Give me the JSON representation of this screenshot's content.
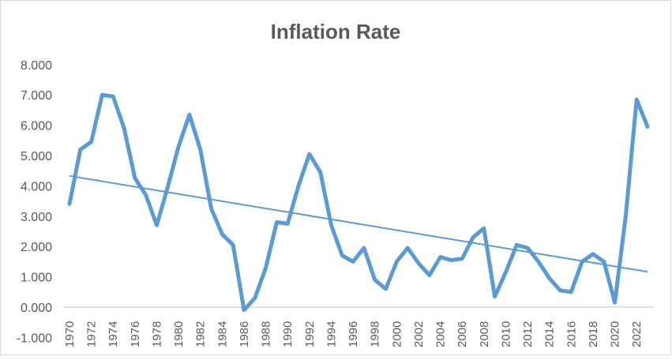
{
  "chart_data": {
    "type": "line",
    "title": "Inflation Rate",
    "xlabel": "",
    "ylabel": "",
    "ylim": [
      -1,
      8
    ],
    "y_ticks": [
      "-1.000",
      "0.000",
      "1.000",
      "2.000",
      "3.000",
      "4.000",
      "5.000",
      "6.000",
      "7.000",
      "8.000"
    ],
    "grid": false,
    "legend": "none",
    "x": [
      1970,
      1971,
      1972,
      1973,
      1974,
      1975,
      1976,
      1977,
      1978,
      1979,
      1980,
      1981,
      1982,
      1983,
      1984,
      1985,
      1986,
      1987,
      1988,
      1989,
      1990,
      1991,
      1992,
      1993,
      1994,
      1995,
      1996,
      1997,
      1998,
      1999,
      2000,
      2001,
      2002,
      2003,
      2004,
      2005,
      2006,
      2007,
      2008,
      2009,
      2010,
      2011,
      2012,
      2013,
      2014,
      2015,
      2016,
      2017,
      2018,
      2019,
      2020,
      2021,
      2022,
      2023
    ],
    "series": [
      {
        "values": [
          3.4,
          5.2,
          5.45,
          7.0,
          6.95,
          5.9,
          4.25,
          3.7,
          2.7,
          3.95,
          5.3,
          6.35,
          5.2,
          3.25,
          2.4,
          2.05,
          -0.1,
          0.3,
          1.3,
          2.8,
          2.75,
          4.0,
          5.05,
          4.45,
          2.7,
          1.7,
          1.5,
          1.95,
          0.9,
          0.6,
          1.5,
          1.95,
          1.45,
          1.05,
          1.65,
          1.55,
          1.6,
          2.3,
          2.6,
          0.35,
          1.15,
          2.05,
          1.95,
          1.5,
          0.95,
          0.55,
          0.5,
          1.5,
          1.75,
          1.5,
          0.15,
          3.0,
          6.85,
          5.95
        ]
      }
    ],
    "trendline": "linear",
    "colors": {
      "series": "#5B9BD5",
      "trendline": "#5B9BD5",
      "text": "#595959",
      "axis": "#D9D9D9"
    }
  }
}
